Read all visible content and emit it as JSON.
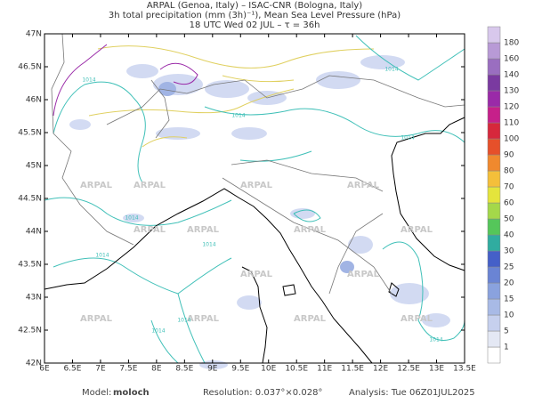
{
  "header": {
    "lines": [
      "ARPAL (Genoa, Italy)  –  ISAC-CNR (Bologna, Italy)",
      "3h total precipitation (mm (3h)⁻¹), Mean Sea Level Pressure (hPa)",
      "18 UTC Wed 02 JUL  –  τ = 36h"
    ]
  },
  "map": {
    "lon_range": [
      6,
      13.5
    ],
    "lat_range": [
      42,
      47
    ],
    "lat_ticks": [
      {
        "value": 42,
        "label": "42N"
      },
      {
        "value": 42.5,
        "label": "42.5N"
      },
      {
        "value": 43,
        "label": "43N"
      },
      {
        "value": 43.5,
        "label": "43.5N"
      },
      {
        "value": 44,
        "label": "44N"
      },
      {
        "value": 44.5,
        "label": "44.5N"
      },
      {
        "value": 45,
        "label": "45N"
      },
      {
        "value": 45.5,
        "label": "45.5N"
      },
      {
        "value": 46,
        "label": "46N"
      },
      {
        "value": 46.5,
        "label": "46.5N"
      },
      {
        "value": 47,
        "label": "47N"
      }
    ],
    "lon_ticks": [
      {
        "value": 6,
        "label": "6E"
      },
      {
        "value": 6.5,
        "label": "6.5E"
      },
      {
        "value": 7,
        "label": "7E"
      },
      {
        "value": 7.5,
        "label": "7.5E"
      },
      {
        "value": 8,
        "label": "8E"
      },
      {
        "value": 8.5,
        "label": "8.5E"
      },
      {
        "value": 9,
        "label": "9E"
      },
      {
        "value": 9.5,
        "label": "9.5E"
      },
      {
        "value": 10,
        "label": "10E"
      },
      {
        "value": 10.5,
        "label": "10.5E"
      },
      {
        "value": 11,
        "label": "11E"
      },
      {
        "value": 11.5,
        "label": "11.5E"
      },
      {
        "value": 12,
        "label": "12E"
      },
      {
        "value": 12.5,
        "label": "12.5E"
      },
      {
        "value": 13,
        "label": "13E"
      },
      {
        "value": 13.5,
        "label": "13.5E"
      }
    ],
    "watermark": "ARPAL",
    "isobar_label": "1014"
  },
  "colorbar": {
    "levels": [
      1,
      5,
      10,
      15,
      20,
      25,
      30,
      40,
      50,
      60,
      70,
      80,
      90,
      100,
      110,
      120,
      130,
      140,
      160,
      180
    ],
    "colors": [
      "#ffffff",
      "#e4e8f4",
      "#c6d0ee",
      "#a8bae6",
      "#8aa2de",
      "#6a84d4",
      "#4560c8",
      "#30aca0",
      "#55c65a",
      "#a4d84a",
      "#e4e43c",
      "#f4bf3a",
      "#f0892e",
      "#e6502a",
      "#d6283c",
      "#c6208a",
      "#9a2aa8",
      "#7a3aa0",
      "#9a6ec0",
      "#b89ad6",
      "#d8c8ec"
    ]
  },
  "footer": {
    "model_label": "Model:",
    "model": "moloch",
    "resolution": "Resolution: 0.037°×0.028°",
    "analysis": "Analysis: Tue 06Z01JUL2025"
  }
}
